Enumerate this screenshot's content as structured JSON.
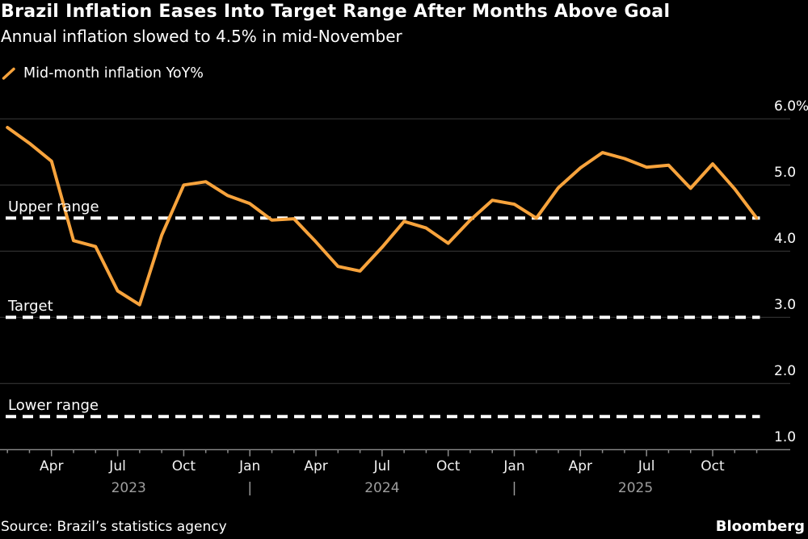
{
  "header": {
    "title": "Brazil Inflation Eases Into Target Range After Months Above Goal",
    "subtitle": "Annual inflation slowed to 4.5% in mid-November"
  },
  "legend": {
    "label": "Mid-month inflation YoY%"
  },
  "footer": {
    "source": "Source: Brazil’s statistics agency",
    "brand": "Bloomberg"
  },
  "colors": {
    "background": "#000000",
    "line": "#F7A33C",
    "grid": "#3A3A3A",
    "axis": "#8C8C8C",
    "text": "#FFFFFF",
    "muted": "#9E9E9E"
  },
  "chart_data": {
    "type": "line",
    "title": "Brazil Inflation Eases Into Target Range After Months Above Goal",
    "subtitle": "Annual inflation slowed to 4.5% in mid-November",
    "unit": "%",
    "x_frequency": "monthly",
    "x_start": "2023-01",
    "x_end": "2025-11",
    "series": [
      {
        "name": "Mid-month inflation YoY%",
        "color": "#F7A33C",
        "values": [
          5.87,
          5.63,
          5.36,
          4.16,
          4.07,
          3.4,
          3.19,
          4.24,
          5.0,
          5.05,
          4.84,
          4.72,
          4.47,
          4.49,
          4.14,
          3.77,
          3.7,
          4.06,
          4.45,
          4.35,
          4.12,
          4.47,
          4.77,
          4.71,
          4.5,
          4.96,
          5.26,
          5.49,
          5.4,
          5.27,
          5.3,
          4.95,
          5.32,
          4.94,
          4.5
        ]
      }
    ],
    "x_tick_labels": [
      {
        "label": "Apr",
        "index": 2
      },
      {
        "label": "Jul",
        "index": 5
      },
      {
        "label": "Oct",
        "index": 8
      },
      {
        "label": "Jan",
        "index": 11
      },
      {
        "label": "Apr",
        "index": 14
      },
      {
        "label": "Jul",
        "index": 17
      },
      {
        "label": "Oct",
        "index": 20
      },
      {
        "label": "Jan",
        "index": 23
      },
      {
        "label": "Apr",
        "index": 26
      },
      {
        "label": "Jul",
        "index": 29
      },
      {
        "label": "Oct",
        "index": 32
      }
    ],
    "year_spans": [
      {
        "label": "2023",
        "from": 0,
        "to": 11
      },
      {
        "label": "2024",
        "from": 11,
        "to": 23
      },
      {
        "label": "2025",
        "from": 23,
        "to": 34
      }
    ],
    "year_separator_glyph": "|",
    "y_ticks": [
      {
        "label": "6.0%",
        "value": 6.0
      },
      {
        "label": "5.0",
        "value": 5.0
      },
      {
        "label": "4.0",
        "value": 4.0
      },
      {
        "label": "3.0",
        "value": 3.0
      },
      {
        "label": "2.0",
        "value": 2.0
      },
      {
        "label": "1.0",
        "value": 1.0
      }
    ],
    "reference_lines": [
      {
        "label": "Upper range",
        "value": 4.5
      },
      {
        "label": "Target",
        "value": 3.0
      },
      {
        "label": "Lower range",
        "value": 1.5
      }
    ],
    "ylim": [
      1.0,
      6.35
    ],
    "grid": "horizontal",
    "legend_position": "top-left"
  }
}
